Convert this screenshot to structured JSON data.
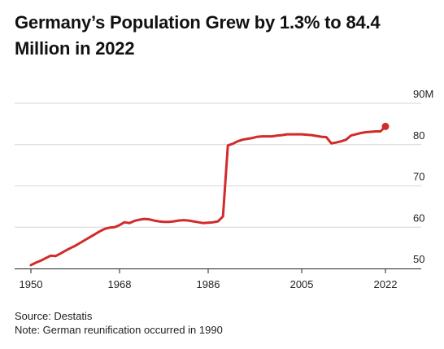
{
  "title_line1": "Germany’s Population Grew by 1.3% to 84.4",
  "title_line2": "Million in 2022",
  "source": "Source: Destatis",
  "note": "Note: German reunification occurred in 1990",
  "chart_data": {
    "type": "line",
    "title": "Germany’s Population Grew by 1.3% to 84.4 Million in 2022",
    "xlabel": "",
    "ylabel": "",
    "xlim": [
      1950,
      2022
    ],
    "ylim": [
      50,
      90
    ],
    "x_ticks": [
      1950,
      1968,
      1986,
      2005,
      2022
    ],
    "y_ticks": [
      50,
      60,
      70,
      80,
      90
    ],
    "y_tick_labels": [
      "50",
      "60",
      "70",
      "80",
      "90M"
    ],
    "grid": "horizontal",
    "color": "#d12b2b",
    "series": [
      {
        "x": [
          1950,
          1951,
          1952,
          1953,
          1954,
          1955,
          1956,
          1957,
          1958,
          1959,
          1960,
          1961,
          1962,
          1963,
          1964,
          1965,
          1966,
          1967,
          1968,
          1969,
          1970,
          1971,
          1972,
          1973,
          1974,
          1975,
          1976,
          1977,
          1978,
          1979,
          1980,
          1981,
          1982,
          1983,
          1984,
          1985,
          1986,
          1987,
          1988,
          1989,
          1990,
          1991,
          1992,
          1993,
          1994,
          1995,
          1996,
          1997,
          1998,
          1999,
          2000,
          2001,
          2002,
          2003,
          2004,
          2005,
          2006,
          2007,
          2008,
          2009,
          2010,
          2011,
          2012,
          2013,
          2014,
          2015,
          2016,
          2017,
          2018,
          2019,
          2020,
          2021,
          2022
        ],
        "values": [
          50.8,
          51.4,
          51.9,
          52.5,
          53.1,
          53.0,
          53.6,
          54.3,
          54.9,
          55.5,
          56.2,
          56.9,
          57.6,
          58.3,
          59.0,
          59.6,
          59.9,
          60.0,
          60.5,
          61.2,
          61.0,
          61.5,
          61.8,
          62.0,
          61.9,
          61.6,
          61.4,
          61.3,
          61.3,
          61.4,
          61.6,
          61.7,
          61.6,
          61.4,
          61.2,
          61.0,
          61.1,
          61.2,
          61.4,
          62.6,
          79.8,
          80.2,
          80.8,
          81.2,
          81.4,
          81.6,
          81.9,
          82.0,
          82.0,
          82.0,
          82.2,
          82.3,
          82.5,
          82.5,
          82.5,
          82.5,
          82.4,
          82.3,
          82.1,
          81.9,
          81.8,
          80.3,
          80.5,
          80.8,
          81.2,
          82.2,
          82.5,
          82.8,
          83.0,
          83.1,
          83.2,
          83.2,
          84.4
        ]
      }
    ],
    "end_marker_value": 84.4
  }
}
